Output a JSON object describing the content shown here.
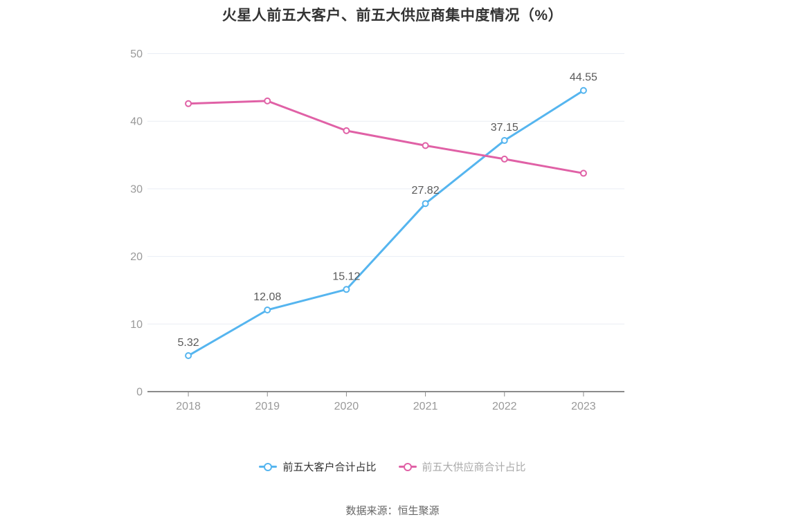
{
  "page": {
    "title": "火星人前五大客户、前五大供应商集中度情况（%）",
    "source": "数据来源：恒生聚源"
  },
  "legend": {
    "items": [
      {
        "label": "前五大客户合计占比",
        "color": "#55b5ef",
        "text_color": "#333333"
      },
      {
        "label": "前五大供应商合计占比",
        "color": "#e061a6",
        "text_color": "#aaaaaa"
      }
    ]
  },
  "chart_data": {
    "type": "line",
    "title": "火星人前五大客户、前五大供应商集中度情况（%）",
    "x": [
      "2018",
      "2019",
      "2020",
      "2021",
      "2022",
      "2023"
    ],
    "series": [
      {
        "name": "前五大客户合计占比",
        "color": "#55b5ef",
        "values": [
          5.32,
          12.08,
          15.12,
          27.82,
          37.15,
          44.55
        ],
        "data_labels": [
          "5.32",
          "12.08",
          "15.12",
          "27.82",
          "37.15",
          "44.55"
        ],
        "show_labels": true
      },
      {
        "name": "前五大供应商合计占比",
        "color": "#e061a6",
        "values": [
          42.6,
          43.0,
          38.6,
          36.4,
          34.4,
          32.3
        ],
        "data_labels": [],
        "show_labels": false
      }
    ],
    "ylim": [
      0,
      50
    ],
    "yticks": [
      0,
      10,
      20,
      30,
      40,
      50
    ],
    "grid": true,
    "legend_position": "bottom",
    "label_color": "#5a5a5a",
    "axis_label_color": "#999999",
    "axis_line_color": "#8b8b8b",
    "grid_color": "#e9edf4",
    "source_note": "数据来源：恒生聚源"
  }
}
